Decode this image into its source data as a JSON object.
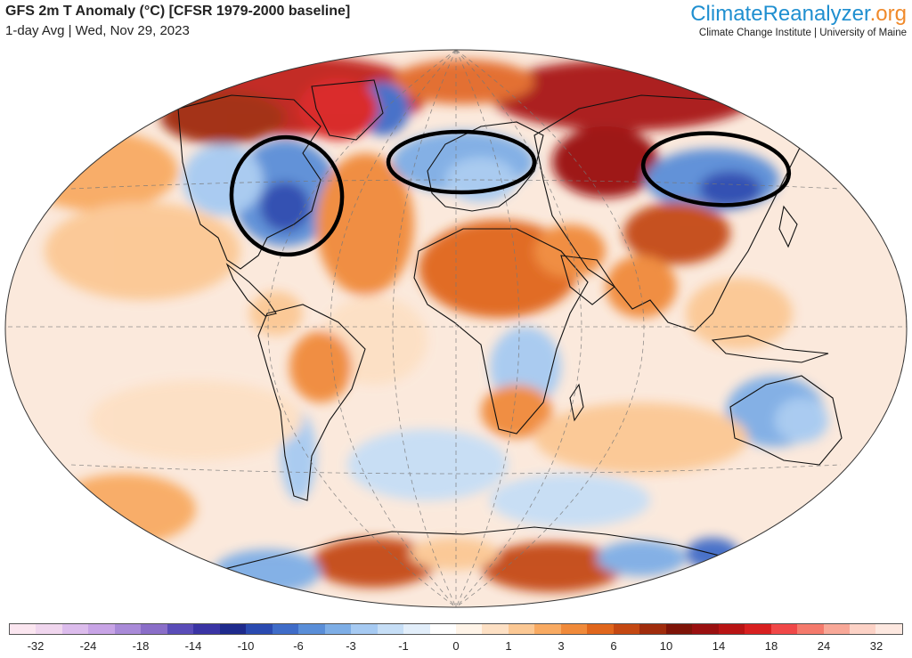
{
  "header": {
    "title": "GFS 2m T Anomaly (°C) [CFSR 1979-2000 baseline]",
    "subtitle": "1-day Avg | Wed, Nov 29, 2023"
  },
  "brand": {
    "name_part1": "Climate",
    "name_part2": "Reanalyzer",
    "name_part3": ".org",
    "tagline": "Climate Change Institute | University of Maine",
    "color_part1": "#1f8fd0",
    "color_part2": "#1f8fd0",
    "color_part3": "#f08a2b"
  },
  "map": {
    "projection": "robinson-like ellipse",
    "ocean_background": "#ffffff",
    "annotations": [
      {
        "shape": "ellipse",
        "region": "eastern-north-america",
        "color": "#000000"
      },
      {
        "shape": "ellipse",
        "region": "northern-europe",
        "color": "#000000"
      },
      {
        "shape": "ellipse",
        "region": "central-siberia",
        "color": "#000000"
      }
    ]
  },
  "colorbar": {
    "colors": [
      "#fbe6f0",
      "#f0d6ee",
      "#dcbcec",
      "#c8a4e6",
      "#a98ad8",
      "#8a6ec8",
      "#5a4cb8",
      "#3a34a4",
      "#1e2a8c",
      "#2a4ab0",
      "#3f6cc8",
      "#5a8ed8",
      "#7eaee6",
      "#a6caf2",
      "#c6def6",
      "#e2eefa",
      "#ffffff",
      "#fff4e8",
      "#fde0c4",
      "#fbc894",
      "#f8aa62",
      "#f08a3a",
      "#e0661c",
      "#c44812",
      "#a02c0c",
      "#7e1408",
      "#9a1010",
      "#b81414",
      "#d82020",
      "#f04848",
      "#f47a6c",
      "#f8a898",
      "#fcd2c6",
      "#fde8e0"
    ],
    "labels": [
      "-32",
      "-24",
      "-18",
      "-14",
      "-10",
      "-6",
      "-3",
      "-1",
      "0",
      "1",
      "3",
      "6",
      "10",
      "14",
      "18",
      "24",
      "32"
    ]
  }
}
